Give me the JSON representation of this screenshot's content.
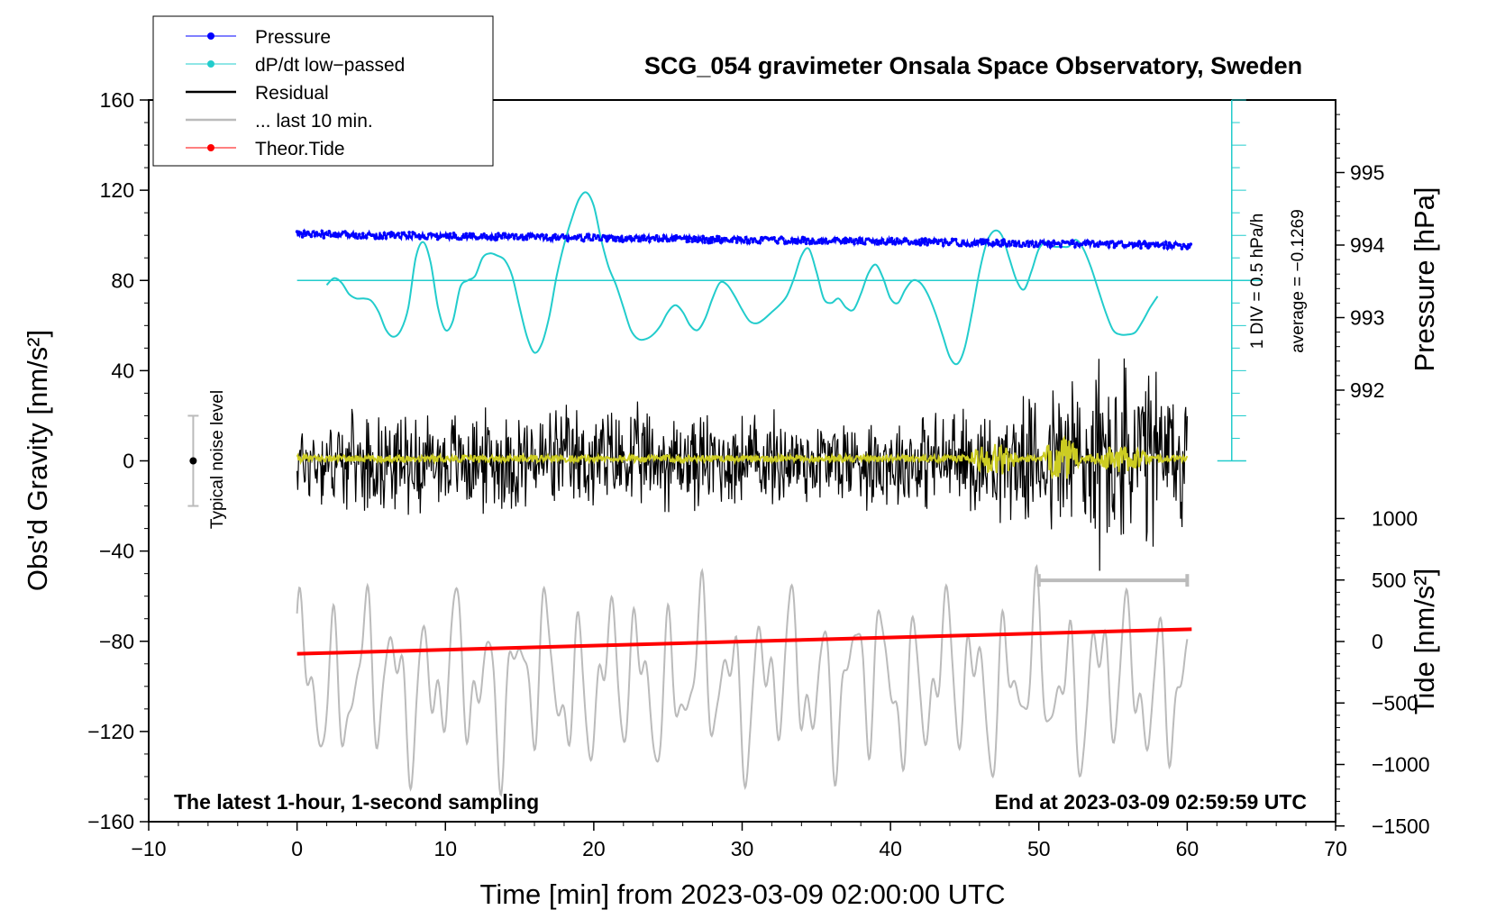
{
  "chart_data": {
    "type": "line",
    "title": "SCG_054 gravimeter Onsala Space Observatory, Sweden",
    "xlabel": "Time [min] from 2023-03-09 02:00:00 UTC",
    "ylabel_left": "Obs'd Gravity [nm/s²]",
    "ylabel_right_top": "Pressure [hPa]",
    "ylabel_right_bottom": "Tide [nm/s²]",
    "xlim": [
      -10,
      70
    ],
    "ylim": [
      -160,
      160
    ],
    "x_ticks": [
      "−10",
      "0",
      "10",
      "20",
      "30",
      "40",
      "50",
      "60",
      "70"
    ],
    "y_ticks": [
      "160",
      "120",
      "80",
      "40",
      "0",
      "−40",
      "−80",
      "−120",
      "−160"
    ],
    "pressure_ticks": [
      "995",
      "994",
      "993",
      "992"
    ],
    "tide_ticks": [
      "1000",
      "500",
      "0",
      "−500",
      "−1000",
      "−1500"
    ],
    "legend": [
      {
        "label": "Pressure",
        "color": "#0000ff",
        "marker": true
      },
      {
        "label": "dP/dt low−passed",
        "color": "#22cccc",
        "marker": true
      },
      {
        "label": "Residual",
        "color": "#000000",
        "marker": false
      },
      {
        "label": "... last 10 min.",
        "color": "#bbbbbb",
        "marker": false
      },
      {
        "label": "Theor.Tide",
        "color": "#ff0000",
        "marker": true
      }
    ],
    "annotations": {
      "noise_label": "Typical noise level",
      "dpdt_scale": "1 DIV = 0.5 hPa/h",
      "dpdt_average": "average = −0.1269",
      "bottom_left": "The latest 1-hour, 1-second sampling",
      "bottom_right": "End at 2023-03-09 02:59:59 UTC"
    },
    "noise_bar": {
      "x": -7,
      "center": 0,
      "half_range": 20
    },
    "last_10_min_bracket": {
      "x_start": 50,
      "x_end": 60,
      "y": -53
    },
    "dpdt_axis": {
      "x": 63,
      "y_bottom": 0,
      "y_top": 160,
      "div": 10
    },
    "series": [
      {
        "name": "Pressure",
        "color": "#0000ff",
        "x_range": [
          0,
          60.3
        ],
        "start": 100.5,
        "end": 95.5,
        "spread": 3
      },
      {
        "name": "dP/dt low-passed",
        "color": "#22cccc",
        "baseline": 80,
        "x": [
          2,
          2.5,
          3,
          3.5,
          4,
          4.5,
          5,
          5.5,
          6,
          6.5,
          7,
          7.5,
          8,
          8.5,
          9,
          9.5,
          10,
          10.5,
          11,
          11.5,
          12,
          12.5,
          13,
          13.5,
          14,
          14.5,
          15,
          15.5,
          16,
          16.5,
          17,
          17.5,
          18,
          18.5,
          19,
          19.5,
          20,
          20.5,
          21,
          21.5,
          22,
          22.5,
          23,
          23.5,
          24,
          24.5,
          25,
          25.5,
          26,
          26.5,
          27,
          27.5,
          28,
          28.5,
          29,
          29.5,
          30,
          30.5,
          31,
          31.5,
          32,
          32.5,
          33,
          33.5,
          34,
          34.5,
          35,
          35.5,
          36,
          36.5,
          37,
          37.5,
          38,
          38.5,
          39,
          39.5,
          40,
          40.5,
          41,
          41.5,
          42,
          42.5,
          43,
          43.5,
          44,
          44.5,
          45,
          45.5,
          46,
          46.5,
          47,
          47.5,
          48,
          48.5,
          49,
          49.5,
          50,
          50.5,
          51,
          51.5,
          52,
          52.5,
          53,
          53.5,
          54,
          54.5,
          55,
          55.5,
          56,
          56.5,
          57,
          57.5,
          58
        ],
        "y": [
          78,
          81,
          79,
          74,
          72,
          72,
          71,
          66,
          58,
          55,
          58,
          68,
          90,
          97,
          88,
          68,
          58,
          62,
          77,
          80,
          82,
          90,
          92,
          91,
          89,
          82,
          68,
          55,
          48,
          52,
          64,
          82,
          96,
          107,
          116,
          119,
          113,
          98,
          86,
          78,
          68,
          58,
          54,
          54,
          56,
          60,
          66,
          69,
          66,
          60,
          58,
          63,
          72,
          79,
          78,
          73,
          67,
          62,
          61,
          63,
          66,
          69,
          73,
          81,
          91,
          94,
          84,
          72,
          70,
          72,
          68,
          67,
          74,
          83,
          87,
          81,
          72,
          70,
          76,
          80,
          79,
          74,
          66,
          56,
          46,
          43,
          50,
          66,
          84,
          97,
          102,
          100,
          90,
          80,
          76,
          84,
          94,
          97,
          95,
          95,
          95,
          98,
          94,
          86,
          76,
          66,
          58,
          56,
          56,
          57,
          62,
          68,
          73
        ]
      },
      {
        "name": "Residual",
        "color": "#000000",
        "x_range": [
          0,
          60
        ],
        "envelope": [
          {
            "x": 0,
            "amp": 22
          },
          {
            "x": 10,
            "amp": 26
          },
          {
            "x": 20,
            "amp": 28
          },
          {
            "x": 30,
            "amp": 25
          },
          {
            "x": 40,
            "amp": 24
          },
          {
            "x": 46,
            "amp": 28
          },
          {
            "x": 50,
            "amp": 32
          },
          {
            "x": 52,
            "amp": 55
          },
          {
            "x": 55,
            "amp": 55
          },
          {
            "x": 58,
            "amp": 48
          },
          {
            "x": 60,
            "amp": 40
          }
        ]
      },
      {
        "name": "Smoothed residual",
        "color": "#cccc22",
        "x_range": [
          0,
          60
        ]
      },
      {
        "name": "... last 10 min.",
        "color": "#bbbbbb",
        "x_range": [
          0,
          60
        ],
        "center": -98,
        "amplitude": 38
      },
      {
        "name": "Theor.Tide",
        "color": "#ff0000",
        "x": [
          0,
          60.3
        ],
        "tide_values": [
          -100,
          100
        ]
      }
    ]
  }
}
